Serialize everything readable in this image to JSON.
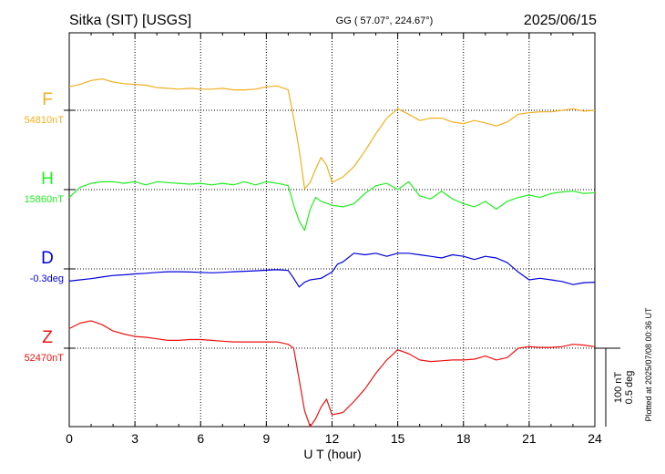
{
  "header": {
    "station": "Sitka (SIT)  [USGS]",
    "coords": "GG ( 57.07°, 224.67°)",
    "date": "2025/06/15"
  },
  "footer": {
    "plotted": "Plotted at 2025/07/08 00:36 UT"
  },
  "scale_bar": {
    "nt": "100 nT",
    "deg": "0.5 deg"
  },
  "chart_data": {
    "type": "line",
    "xlabel": "U T (hour)",
    "xlim": [
      0,
      24
    ],
    "xticks": [
      0,
      3,
      6,
      9,
      12,
      15,
      18,
      21,
      24
    ],
    "grid": true,
    "series": [
      {
        "name": "F",
        "baseline_label": "54810nT",
        "color": "#f0b020",
        "baseline": 54810,
        "unit": "nT",
        "points": [
          [
            0,
            54840
          ],
          [
            0.5,
            54843
          ],
          [
            1,
            54848
          ],
          [
            1.5,
            54850
          ],
          [
            2,
            54846
          ],
          [
            2.5,
            54844
          ],
          [
            3,
            54843
          ],
          [
            3.5,
            54842
          ],
          [
            4,
            54839
          ],
          [
            4.5,
            54838
          ],
          [
            5,
            54837
          ],
          [
            5.5,
            54838
          ],
          [
            6,
            54837
          ],
          [
            6.5,
            54837
          ],
          [
            7,
            54838
          ],
          [
            7.5,
            54836
          ],
          [
            8,
            54836
          ],
          [
            8.5,
            54837
          ],
          [
            9,
            54840
          ],
          [
            9.5,
            54841
          ],
          [
            10,
            54836
          ],
          [
            10.25,
            54800
          ],
          [
            10.5,
            54760
          ],
          [
            10.75,
            54710
          ],
          [
            11,
            54718
          ],
          [
            11.25,
            54735
          ],
          [
            11.5,
            54750
          ],
          [
            11.75,
            54740
          ],
          [
            12,
            54718
          ],
          [
            12.5,
            54725
          ],
          [
            13,
            54738
          ],
          [
            13.5,
            54758
          ],
          [
            14,
            54780
          ],
          [
            14.5,
            54800
          ],
          [
            15,
            54812
          ],
          [
            15.5,
            54805
          ],
          [
            16,
            54797
          ],
          [
            16.5,
            54800
          ],
          [
            17,
            54800
          ],
          [
            17.5,
            54795
          ],
          [
            18,
            54793
          ],
          [
            18.5,
            54797
          ],
          [
            19,
            54794
          ],
          [
            19.5,
            54790
          ],
          [
            20,
            54795
          ],
          [
            20.5,
            54805
          ],
          [
            21,
            54807
          ],
          [
            21.5,
            54808
          ],
          [
            22,
            54808
          ],
          [
            22.5,
            54810
          ],
          [
            23,
            54812
          ],
          [
            23.5,
            54809
          ],
          [
            24,
            54810
          ]
        ]
      },
      {
        "name": "H",
        "baseline_label": "15860nT",
        "color": "#22ee22",
        "baseline": 15860,
        "unit": "nT",
        "points": [
          [
            0,
            15850
          ],
          [
            0.5,
            15863
          ],
          [
            1,
            15868
          ],
          [
            1.5,
            15870
          ],
          [
            2,
            15870
          ],
          [
            2.5,
            15868
          ],
          [
            3,
            15870
          ],
          [
            3.5,
            15866
          ],
          [
            4,
            15870
          ],
          [
            4.5,
            15869
          ],
          [
            5,
            15868
          ],
          [
            5.5,
            15867
          ],
          [
            6,
            15868
          ],
          [
            6.5,
            15866
          ],
          [
            7,
            15868
          ],
          [
            7.5,
            15866
          ],
          [
            8,
            15870
          ],
          [
            8.5,
            15866
          ],
          [
            9,
            15870
          ],
          [
            9.5,
            15868
          ],
          [
            10,
            15865
          ],
          [
            10.25,
            15840
          ],
          [
            10.5,
            15820
          ],
          [
            10.75,
            15808
          ],
          [
            11,
            15835
          ],
          [
            11.25,
            15850
          ],
          [
            11.5,
            15845
          ],
          [
            12,
            15840
          ],
          [
            12.5,
            15838
          ],
          [
            13,
            15842
          ],
          [
            13.5,
            15855
          ],
          [
            14,
            15865
          ],
          [
            14.5,
            15868
          ],
          [
            15,
            15860
          ],
          [
            15.5,
            15870
          ],
          [
            16,
            15852
          ],
          [
            16.5,
            15848
          ],
          [
            17,
            15858
          ],
          [
            17.5,
            15848
          ],
          [
            18,
            15842
          ],
          [
            18.5,
            15838
          ],
          [
            19,
            15845
          ],
          [
            19.5,
            15835
          ],
          [
            20,
            15845
          ],
          [
            20.5,
            15850
          ],
          [
            21,
            15853
          ],
          [
            21.5,
            15850
          ],
          [
            22,
            15855
          ],
          [
            22.5,
            15857
          ],
          [
            23,
            15858
          ],
          [
            23.5,
            15855
          ],
          [
            24,
            15856
          ]
        ]
      },
      {
        "name": "D",
        "baseline_label": "-0.3deg",
        "color": "#0000dd",
        "baseline": -0.3,
        "unit": "deg",
        "points": [
          [
            0,
            -0.378
          ],
          [
            0.5,
            -0.37
          ],
          [
            1,
            -0.362
          ],
          [
            1.5,
            -0.352
          ],
          [
            2,
            -0.342
          ],
          [
            2.5,
            -0.338
          ],
          [
            3,
            -0.332
          ],
          [
            3.5,
            -0.328
          ],
          [
            4,
            -0.322
          ],
          [
            4.5,
            -0.318
          ],
          [
            5,
            -0.318
          ],
          [
            5.5,
            -0.32
          ],
          [
            6,
            -0.322
          ],
          [
            6.5,
            -0.325
          ],
          [
            7,
            -0.322
          ],
          [
            7.5,
            -0.318
          ],
          [
            8,
            -0.315
          ],
          [
            8.5,
            -0.312
          ],
          [
            9,
            -0.308
          ],
          [
            9.5,
            -0.305
          ],
          [
            10,
            -0.31
          ],
          [
            10.25,
            -0.36
          ],
          [
            10.5,
            -0.415
          ],
          [
            10.75,
            -0.385
          ],
          [
            11,
            -0.37
          ],
          [
            11.5,
            -0.36
          ],
          [
            12,
            -0.32
          ],
          [
            12.25,
            -0.27
          ],
          [
            12.5,
            -0.255
          ],
          [
            13,
            -0.2
          ],
          [
            13.5,
            -0.21
          ],
          [
            14,
            -0.2
          ],
          [
            14.5,
            -0.22
          ],
          [
            15,
            -0.2
          ],
          [
            15.5,
            -0.2
          ],
          [
            16,
            -0.21
          ],
          [
            16.5,
            -0.22
          ],
          [
            17,
            -0.23
          ],
          [
            17.5,
            -0.21
          ],
          [
            18,
            -0.22
          ],
          [
            18.5,
            -0.24
          ],
          [
            19,
            -0.22
          ],
          [
            19.5,
            -0.23
          ],
          [
            20,
            -0.26
          ],
          [
            20.5,
            -0.32
          ],
          [
            21,
            -0.37
          ],
          [
            21.5,
            -0.36
          ],
          [
            22,
            -0.37
          ],
          [
            22.5,
            -0.38
          ],
          [
            23,
            -0.4
          ],
          [
            23.5,
            -0.388
          ],
          [
            24,
            -0.385
          ]
        ]
      },
      {
        "name": "Z",
        "baseline_label": "52470nT",
        "color": "#ee1111",
        "baseline": 52470,
        "unit": "nT",
        "points": [
          [
            0,
            52495
          ],
          [
            0.5,
            52502
          ],
          [
            1,
            52505
          ],
          [
            1.5,
            52500
          ],
          [
            2,
            52492
          ],
          [
            2.5,
            52488
          ],
          [
            3,
            52485
          ],
          [
            3.5,
            52484
          ],
          [
            4,
            52482
          ],
          [
            4.5,
            52480
          ],
          [
            5,
            52480
          ],
          [
            5.5,
            52481
          ],
          [
            6,
            52481
          ],
          [
            6.5,
            52480
          ],
          [
            7,
            52479
          ],
          [
            7.5,
            52478
          ],
          [
            8,
            52478
          ],
          [
            8.5,
            52478
          ],
          [
            9,
            52478
          ],
          [
            9.5,
            52478
          ],
          [
            10,
            52475
          ],
          [
            10.25,
            52470
          ],
          [
            10.5,
            52430
          ],
          [
            10.75,
            52390
          ],
          [
            11,
            52370
          ],
          [
            11.25,
            52380
          ],
          [
            11.5,
            52395
          ],
          [
            11.75,
            52405
          ],
          [
            12,
            52385
          ],
          [
            12.5,
            52388
          ],
          [
            13,
            52402
          ],
          [
            13.5,
            52418
          ],
          [
            14,
            52438
          ],
          [
            14.5,
            52455
          ],
          [
            15,
            52468
          ],
          [
            15.5,
            52463
          ],
          [
            16,
            52455
          ],
          [
            16.5,
            52453
          ],
          [
            17,
            52454
          ],
          [
            17.5,
            52455
          ],
          [
            18,
            52455
          ],
          [
            18.5,
            52456
          ],
          [
            19,
            52460
          ],
          [
            19.5,
            52455
          ],
          [
            20,
            52458
          ],
          [
            20.5,
            52470
          ],
          [
            21,
            52472
          ],
          [
            21.5,
            52471
          ],
          [
            22,
            52471
          ],
          [
            22.5,
            52472
          ],
          [
            23,
            52475
          ],
          [
            23.5,
            52474
          ],
          [
            24,
            52472
          ]
        ]
      }
    ]
  }
}
